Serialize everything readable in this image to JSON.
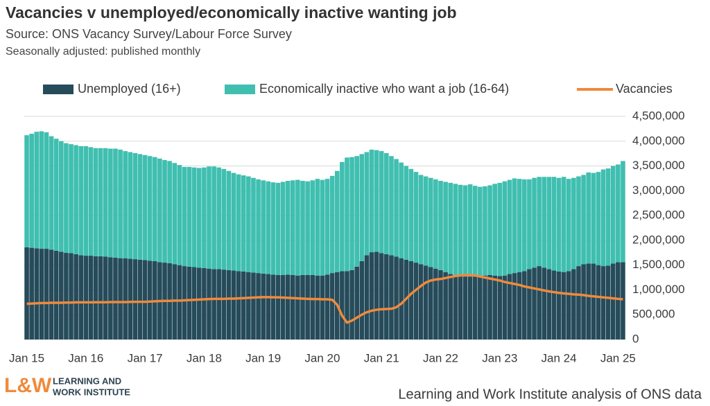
{
  "chart_data": {
    "type": "bar",
    "title": "Vacancies v unemployed/economically inactive wanting job",
    "subtitles": [
      "Source: ONS Vacancy Survey/Labour Force Survey",
      "Seasonally adjusted: published monthly"
    ],
    "note": "Learning and Work Institute analysis of ONS data",
    "logo_text": "L&W",
    "organization": [
      "LEARNING AND",
      "WORK INSTITUTE"
    ],
    "categories": [
      "Jan 15",
      null,
      null,
      null,
      null,
      null,
      null,
      null,
      null,
      null,
      null,
      null,
      "Jan 16",
      null,
      null,
      null,
      null,
      null,
      null,
      null,
      null,
      null,
      null,
      null,
      "Jan 17",
      null,
      null,
      null,
      null,
      null,
      null,
      null,
      null,
      null,
      null,
      null,
      "Jan 18",
      null,
      null,
      null,
      null,
      null,
      null,
      null,
      null,
      null,
      null,
      null,
      "Jan 19",
      null,
      null,
      null,
      null,
      null,
      null,
      null,
      null,
      null,
      null,
      null,
      "Jan 20",
      null,
      null,
      null,
      null,
      null,
      null,
      null,
      null,
      null,
      null,
      null,
      "Jan 21",
      null,
      null,
      null,
      null,
      null,
      null,
      null,
      null,
      null,
      null,
      null,
      "Jan 22",
      null,
      null,
      null,
      null,
      null,
      null,
      null,
      null,
      null,
      null,
      null,
      "Jan 23",
      null,
      null,
      null,
      null,
      null,
      null,
      null,
      null,
      null,
      null,
      null,
      "Jan 24",
      null,
      null,
      null,
      null,
      null,
      null,
      null,
      null,
      null,
      null,
      null,
      "Jan 25",
      null
    ],
    "series": [
      {
        "name": "Unemployed (16+)",
        "color": "#264b5a",
        "type": "bar",
        "values": [
          1860000,
          1850000,
          1840000,
          1830000,
          1830000,
          1810000,
          1790000,
          1770000,
          1750000,
          1740000,
          1720000,
          1700000,
          1690000,
          1690000,
          1680000,
          1680000,
          1670000,
          1660000,
          1650000,
          1640000,
          1640000,
          1630000,
          1620000,
          1610000,
          1600000,
          1590000,
          1580000,
          1560000,
          1550000,
          1540000,
          1520000,
          1500000,
          1480000,
          1470000,
          1460000,
          1450000,
          1440000,
          1430000,
          1420000,
          1420000,
          1410000,
          1400000,
          1390000,
          1380000,
          1370000,
          1360000,
          1350000,
          1340000,
          1330000,
          1320000,
          1310000,
          1300000,
          1300000,
          1310000,
          1300000,
          1290000,
          1300000,
          1300000,
          1300000,
          1290000,
          1290000,
          1310000,
          1340000,
          1360000,
          1380000,
          1380000,
          1400000,
          1470000,
          1580000,
          1700000,
          1760000,
          1770000,
          1740000,
          1720000,
          1700000,
          1670000,
          1640000,
          1610000,
          1580000,
          1550000,
          1520000,
          1490000,
          1460000,
          1430000,
          1400000,
          1360000,
          1320000,
          1290000,
          1280000,
          1270000,
          1270000,
          1270000,
          1280000,
          1290000,
          1300000,
          1290000,
          1280000,
          1290000,
          1320000,
          1340000,
          1360000,
          1380000,
          1420000,
          1450000,
          1480000,
          1450000,
          1420000,
          1390000,
          1370000,
          1360000,
          1380000,
          1420000,
          1480000,
          1520000,
          1530000,
          1530000,
          1500000,
          1480000,
          1490000,
          1530000,
          1560000,
          1560000
        ]
      },
      {
        "name": "Economically inactive who want a job (16-64)",
        "color": "#40bfb0",
        "type": "bar",
        "values": [
          2260000,
          2300000,
          2350000,
          2370000,
          2350000,
          2290000,
          2260000,
          2230000,
          2210000,
          2200000,
          2200000,
          2200000,
          2210000,
          2190000,
          2180000,
          2180000,
          2190000,
          2190000,
          2200000,
          2190000,
          2160000,
          2150000,
          2140000,
          2130000,
          2120000,
          2110000,
          2100000,
          2090000,
          2070000,
          2060000,
          2040000,
          2020000,
          2000000,
          2010000,
          2010000,
          2010000,
          2030000,
          2060000,
          2070000,
          2050000,
          2030000,
          2000000,
          1970000,
          1950000,
          1940000,
          1930000,
          1910000,
          1890000,
          1880000,
          1870000,
          1860000,
          1860000,
          1880000,
          1890000,
          1910000,
          1930000,
          1900000,
          1890000,
          1910000,
          1950000,
          1930000,
          1930000,
          1960000,
          2040000,
          2200000,
          2290000,
          2280000,
          2230000,
          2160000,
          2080000,
          2070000,
          2050000,
          2060000,
          2040000,
          2000000,
          1970000,
          1930000,
          1890000,
          1860000,
          1830000,
          1800000,
          1800000,
          1800000,
          1800000,
          1800000,
          1820000,
          1840000,
          1850000,
          1840000,
          1840000,
          1860000,
          1830000,
          1800000,
          1800000,
          1810000,
          1850000,
          1880000,
          1900000,
          1900000,
          1910000,
          1880000,
          1850000,
          1810000,
          1810000,
          1800000,
          1830000,
          1860000,
          1890000,
          1890000,
          1920000,
          1860000,
          1840000,
          1810000,
          1800000,
          1840000,
          1830000,
          1880000,
          1950000,
          1960000,
          1970000,
          1970000,
          2040000
        ]
      },
      {
        "name": "Vacancies",
        "color": "#f08a3c",
        "type": "line",
        "values": [
          720000,
          725000,
          730000,
          735000,
          735000,
          740000,
          740000,
          740000,
          745000,
          745000,
          750000,
          750000,
          750000,
          750000,
          752000,
          752000,
          752000,
          755000,
          755000,
          755000,
          755000,
          758000,
          760000,
          760000,
          760000,
          765000,
          770000,
          775000,
          780000,
          780000,
          785000,
          785000,
          790000,
          795000,
          800000,
          805000,
          810000,
          815000,
          820000,
          820000,
          820000,
          825000,
          825000,
          830000,
          835000,
          840000,
          845000,
          850000,
          855000,
          855000,
          850000,
          850000,
          845000,
          840000,
          835000,
          830000,
          825000,
          820000,
          815000,
          815000,
          810000,
          810000,
          800000,
          700000,
          480000,
          340000,
          380000,
          440000,
          500000,
          550000,
          580000,
          600000,
          610000,
          615000,
          620000,
          650000,
          720000,
          820000,
          920000,
          1000000,
          1080000,
          1150000,
          1190000,
          1210000,
          1220000,
          1240000,
          1260000,
          1280000,
          1290000,
          1300000,
          1300000,
          1290000,
          1270000,
          1250000,
          1230000,
          1210000,
          1190000,
          1160000,
          1140000,
          1120000,
          1100000,
          1070000,
          1050000,
          1030000,
          1010000,
          990000,
          970000,
          955000,
          940000,
          930000,
          920000,
          910000,
          905000,
          895000,
          880000,
          870000,
          860000,
          850000,
          840000,
          830000,
          820000,
          810000
        ]
      }
    ],
    "ylim": [
      0,
      4500000
    ],
    "yticks": [
      0,
      {
        "value": 500000,
        "label": "500,000"
      },
      {
        "value": 1000000,
        "label": "1,000,000"
      },
      {
        "value": 1500000,
        "label": "1,500,000"
      },
      {
        "value": 2000000,
        "label": "2,000,000"
      },
      {
        "value": 2500000,
        "label": "2,500,000"
      },
      {
        "value": 3000000,
        "label": "3,000,000"
      },
      {
        "value": 3500000,
        "label": "3,500,000"
      },
      {
        "value": 4000000,
        "label": "4,000,000"
      },
      {
        "value": 4500000,
        "label": "4,500,000"
      }
    ],
    "grid": true,
    "legend": "top"
  }
}
